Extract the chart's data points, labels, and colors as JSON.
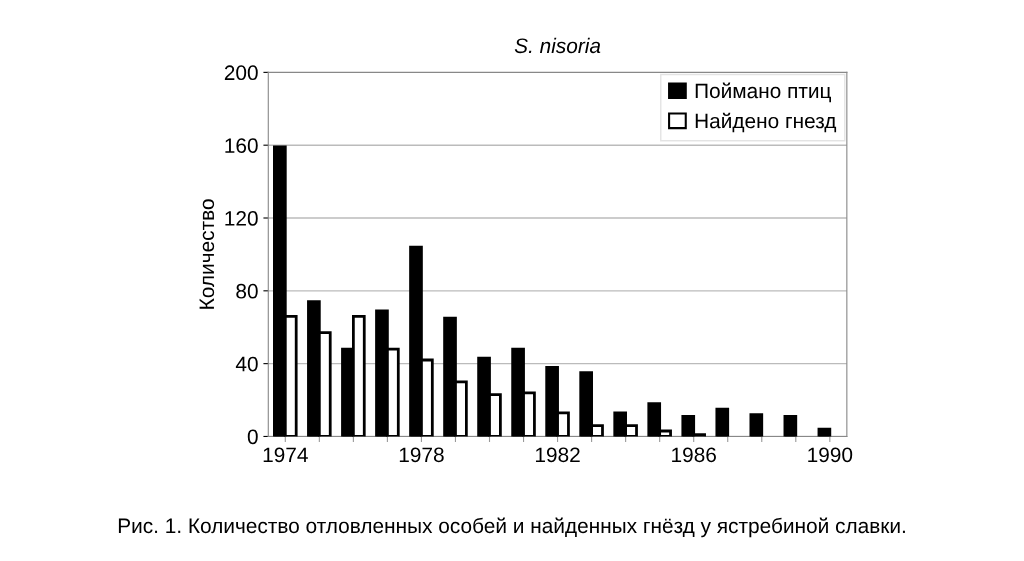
{
  "chart_data": {
    "type": "bar",
    "title": "S. nisoria",
    "ylabel": "Количество",
    "categories": [
      "1974",
      null,
      null,
      null,
      "1978",
      null,
      null,
      null,
      "1982",
      null,
      null,
      null,
      "1986",
      null,
      null,
      null,
      "1990"
    ],
    "series": [
      {
        "name": "Поймано птиц",
        "color": "#000000",
        "values": [
          159,
          74,
          48,
          69,
          104,
          65,
          43,
          48,
          38,
          35,
          13,
          18,
          11,
          15,
          12,
          11,
          4
        ]
      },
      {
        "name": "Найдено гнезд",
        "color": "#ffffff",
        "values": [
          66,
          57,
          66,
          48,
          42,
          30,
          23,
          24,
          13,
          6,
          6,
          3,
          1,
          null,
          null,
          null,
          null
        ]
      }
    ],
    "ylim": [
      0,
      200
    ],
    "yticks": [
      0,
      40,
      80,
      120,
      160,
      200
    ],
    "grid": "y",
    "legend": "top right",
    "annotations": [
      "Рис. 1. Количество отловленных особей и найденных гнёзд у ястребиной славки."
    ]
  }
}
